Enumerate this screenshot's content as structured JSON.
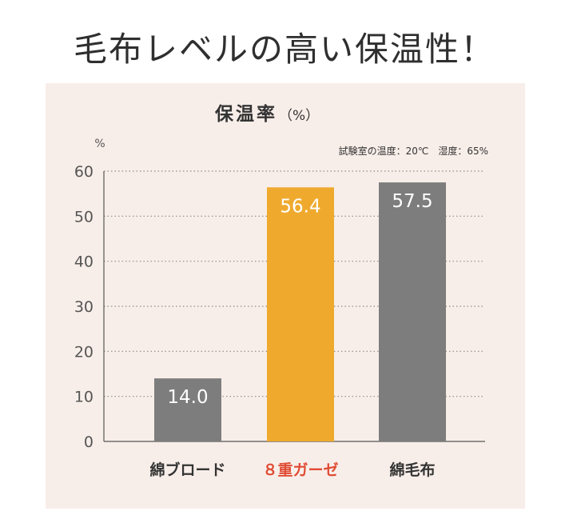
{
  "headline": "毛布レベルの高い保温性！",
  "chart_data": {
    "type": "bar",
    "title": "保温率",
    "title_unit": "（%）",
    "subtitle": "試験室の温度：20℃　湿度：65%",
    "ylabel": "%",
    "ylim": [
      0,
      60
    ],
    "yticks": [
      0,
      10,
      20,
      30,
      40,
      50,
      60
    ],
    "grid": true,
    "categories": [
      "綿ブロード",
      "８重ガーゼ",
      "綿毛布"
    ],
    "values": [
      14.0,
      56.4,
      57.5
    ],
    "value_labels": [
      "14.0",
      "56.4",
      "57.5"
    ],
    "bar_colors": [
      "#7d7d7d",
      "#efaa2e",
      "#7d7d7d"
    ],
    "category_label_colors": [
      "#333333",
      "#e04b34",
      "#333333"
    ]
  }
}
